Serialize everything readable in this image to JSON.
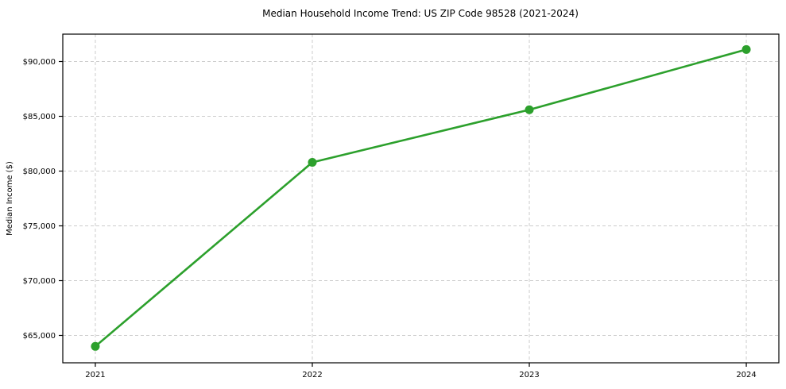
{
  "chart_data": {
    "type": "line",
    "title": "Median Household Income Trend: US ZIP Code 98528 (2021-2024)",
    "xlabel": "",
    "ylabel": "Median Income ($)",
    "x": [
      2021,
      2022,
      2023,
      2024
    ],
    "values": [
      64000,
      80800,
      85600,
      91100
    ],
    "xticks": [
      2021,
      2022,
      2023,
      2024
    ],
    "xtick_labels": [
      "2021",
      "2022",
      "2023",
      "2024"
    ],
    "yticks": [
      65000,
      70000,
      75000,
      80000,
      85000,
      90000
    ],
    "ytick_labels": [
      "$65,000",
      "$70,000",
      "$75,000",
      "$80,000",
      "$85,000",
      "$90,000"
    ],
    "xlim": [
      2020.85,
      2024.15
    ],
    "ylim": [
      62500,
      92500
    ],
    "grid": true,
    "grid_style": "dashed",
    "legend": "none",
    "colors": {
      "line": "#2ca02c",
      "marker": "#2ca02c",
      "grid": "#cccccc",
      "frame": "#000000",
      "background": "#ffffff",
      "text": "#000000"
    }
  }
}
